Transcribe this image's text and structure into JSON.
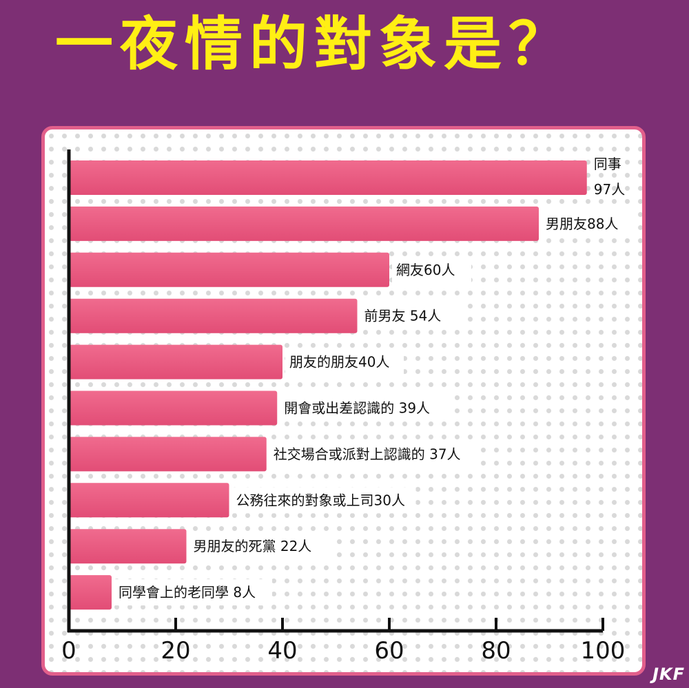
{
  "title": "一夜情的對象是？",
  "watermark": "JKF",
  "colors": {
    "background": "#7d2f74",
    "title": "#ffef14",
    "bar": "#ec5980",
    "panel_border": "#e25f8b"
  },
  "chart_data": {
    "type": "bar",
    "orientation": "horizontal",
    "title": "一夜情的對象是？",
    "xlim": [
      0,
      100
    ],
    "xticks": [
      0,
      20,
      40,
      60,
      80,
      100
    ],
    "grid": false,
    "categories": [
      "同事",
      "男朋友",
      "網友",
      "前男友",
      "朋友的朋友",
      "開會或出差認識的",
      "社交場合或派對上認識的",
      "公務往來的對象或上司",
      "男朋友的死黨",
      "同學會上的老同學"
    ],
    "values": [
      97,
      88,
      60,
      54,
      40,
      39,
      37,
      30,
      22,
      8
    ],
    "labels": [
      [
        "同事",
        "97人"
      ],
      [
        "男朋友88人"
      ],
      [
        "網友60人"
      ],
      [
        "前男友 54人"
      ],
      [
        "朋友的朋友40人"
      ],
      [
        "開會或出差認識的 39人"
      ],
      [
        "社交場合或派對上認識的 37人"
      ],
      [
        "公務往來的對象或上司30人"
      ],
      [
        "男朋友的死黨 22人"
      ],
      [
        "同學會上的老同學 8人"
      ]
    ]
  }
}
